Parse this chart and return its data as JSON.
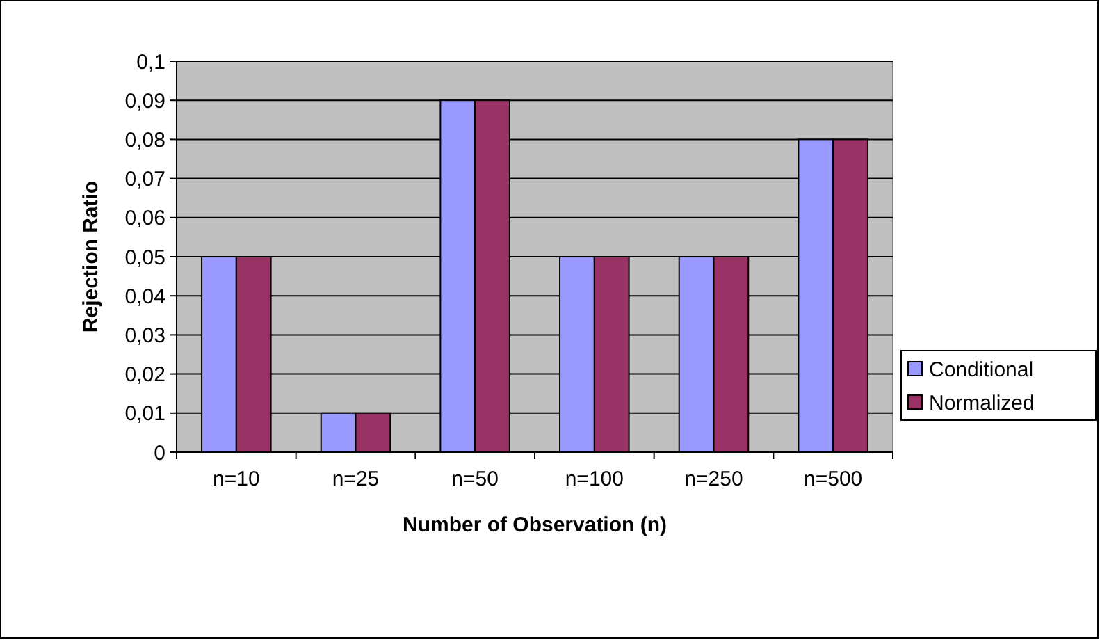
{
  "chart_data": {
    "type": "bar",
    "xlabel": "Number of Observation (n)",
    "ylabel": "Rejection Ratio",
    "categories": [
      "n=10",
      "n=25",
      "n=50",
      "n=100",
      "n=250",
      "n=500"
    ],
    "series": [
      {
        "name": "Conditional",
        "color": "#9999ff",
        "values": [
          0.05,
          0.01,
          0.09,
          0.05,
          0.05,
          0.08
        ]
      },
      {
        "name": "Normalized",
        "color": "#993366",
        "values": [
          0.05,
          0.01,
          0.09,
          0.05,
          0.05,
          0.08
        ]
      }
    ],
    "ylim": [
      0,
      0.1
    ],
    "yticks": [
      {
        "value": 0,
        "label": "0"
      },
      {
        "value": 0.01,
        "label": "0,01"
      },
      {
        "value": 0.02,
        "label": "0,02"
      },
      {
        "value": 0.03,
        "label": "0,03"
      },
      {
        "value": 0.04,
        "label": "0,04"
      },
      {
        "value": 0.05,
        "label": "0,05"
      },
      {
        "value": 0.06,
        "label": "0,06"
      },
      {
        "value": 0.07,
        "label": "0,07"
      },
      {
        "value": 0.08,
        "label": "0,08"
      },
      {
        "value": 0.09,
        "label": "0,09"
      },
      {
        "value": 0.1,
        "label": "0,1"
      }
    ],
    "grid": "y",
    "legend": "right"
  }
}
